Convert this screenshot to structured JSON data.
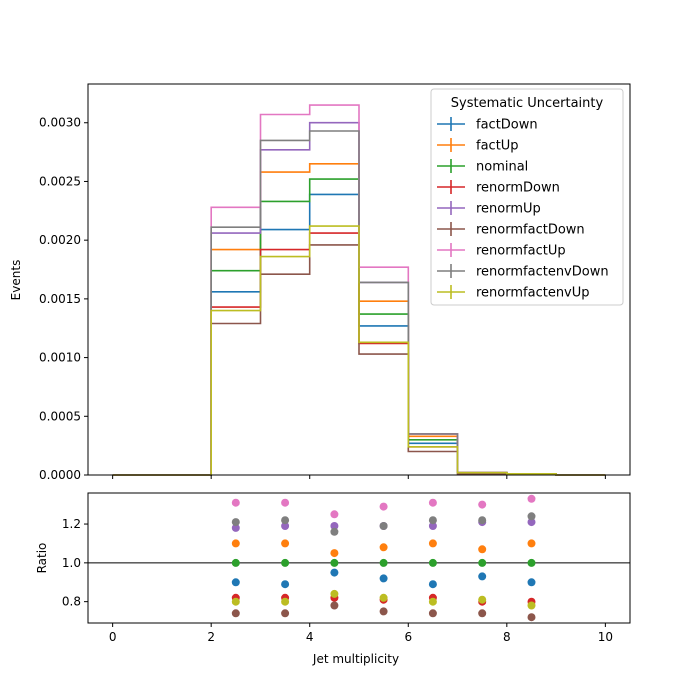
{
  "chart_data": [
    {
      "type": "line",
      "drawstyle": "steps",
      "ylabel": "Events",
      "ylim": [
        0,
        0.00333
      ],
      "xlim": [
        -0.5,
        10.5
      ],
      "yticks": [
        0.0,
        0.0005,
        0.001,
        0.0015,
        0.002,
        0.0025,
        0.003
      ],
      "ytick_labels": [
        "0.0000",
        "0.0005",
        "0.0010",
        "0.0015",
        "0.0020",
        "0.0025",
        "0.0030"
      ],
      "bin_edges": [
        0,
        1,
        2,
        3,
        4,
        5,
        6,
        7,
        8,
        9,
        10
      ],
      "legend": {
        "title": "Systematic Uncertainty",
        "placement": "top-right"
      },
      "series": [
        {
          "name": "factDown",
          "color": "#1f77b4",
          "values": [
            0,
            0,
            0.00156,
            0.00209,
            0.00239,
            0.00127,
            0.00027,
            2e-05,
            1e-05,
            0
          ]
        },
        {
          "name": "factUp",
          "color": "#ff7f0e",
          "values": [
            0,
            0,
            0.00192,
            0.00258,
            0.00265,
            0.00148,
            0.00033,
            2e-05,
            1e-05,
            0
          ]
        },
        {
          "name": "nominal",
          "color": "#2ca02c",
          "values": [
            0,
            0,
            0.00174,
            0.00233,
            0.00252,
            0.00137,
            0.0003,
            2e-05,
            1e-05,
            0
          ]
        },
        {
          "name": "renormDown",
          "color": "#d62728",
          "values": [
            0,
            0,
            0.00143,
            0.00192,
            0.00206,
            0.00112,
            0.00024,
            2e-05,
            1e-05,
            0
          ]
        },
        {
          "name": "renormUp",
          "color": "#9467bd",
          "values": [
            0,
            0,
            0.00206,
            0.00277,
            0.003,
            0.00164,
            0.00035,
            2e-05,
            1e-05,
            0
          ]
        },
        {
          "name": "renormfactDown",
          "color": "#8c564b",
          "values": [
            0,
            0,
            0.00129,
            0.00171,
            0.00196,
            0.00103,
            0.0002,
            1e-05,
            1e-05,
            0
          ]
        },
        {
          "name": "renormfactUp",
          "color": "#e377c2",
          "values": [
            0,
            0,
            0.00228,
            0.00307,
            0.00315,
            0.00177,
            0.00035,
            2e-05,
            1e-05,
            0
          ]
        },
        {
          "name": "renormfactenvDown",
          "color": "#7f7f7f",
          "values": [
            0,
            0,
            0.00211,
            0.00285,
            0.00293,
            0.00164,
            0.00035,
            2e-05,
            1e-05,
            0
          ]
        },
        {
          "name": "renormfactenvUp",
          "color": "#bcbd22",
          "values": [
            0,
            0,
            0.0014,
            0.00186,
            0.00212,
            0.00113,
            0.00024,
            2e-05,
            1e-05,
            0
          ]
        }
      ]
    },
    {
      "type": "scatter",
      "xlabel": "Jet multiplicity",
      "ylabel": "Ratio",
      "xlim": [
        -0.5,
        10.5
      ],
      "ylim": [
        0.69,
        1.36
      ],
      "xticks": [
        0,
        2,
        4,
        6,
        8,
        10
      ],
      "yticks": [
        0.8,
        1.0,
        1.2
      ],
      "ytick_labels": [
        "0.8",
        "1.0",
        "1.2"
      ],
      "reference_line": 1.0,
      "x": [
        2.5,
        3.5,
        4.5,
        5.5,
        6.5,
        7.5,
        8.5
      ],
      "series": [
        {
          "name": "factDown",
          "color": "#1f77b4",
          "values": [
            0.9,
            0.89,
            0.95,
            0.92,
            0.89,
            0.93,
            0.9
          ]
        },
        {
          "name": "factUp",
          "color": "#ff7f0e",
          "values": [
            1.1,
            1.1,
            1.05,
            1.08,
            1.1,
            1.07,
            1.1
          ]
        },
        {
          "name": "nominal",
          "color": "#2ca02c",
          "values": [
            1.0,
            1.0,
            1.0,
            1.0,
            1.0,
            1.0,
            1.0
          ]
        },
        {
          "name": "renormDown",
          "color": "#d62728",
          "values": [
            0.82,
            0.82,
            0.82,
            0.81,
            0.82,
            0.8,
            0.8
          ]
        },
        {
          "name": "renormUp",
          "color": "#9467bd",
          "values": [
            1.18,
            1.19,
            1.19,
            1.19,
            1.19,
            1.21,
            1.21
          ]
        },
        {
          "name": "renormfactDown",
          "color": "#8c564b",
          "values": [
            0.74,
            0.74,
            0.78,
            0.75,
            0.74,
            0.74,
            0.72
          ]
        },
        {
          "name": "renormfactUp",
          "color": "#e377c2",
          "values": [
            1.31,
            1.31,
            1.25,
            1.29,
            1.31,
            1.3,
            1.33
          ]
        },
        {
          "name": "renormfactenvDown",
          "color": "#7f7f7f",
          "values": [
            1.21,
            1.22,
            1.16,
            1.19,
            1.22,
            1.22,
            1.24
          ]
        },
        {
          "name": "renormfactenvUp",
          "color": "#bcbd22",
          "values": [
            0.8,
            0.8,
            0.84,
            0.82,
            0.8,
            0.81,
            0.78
          ]
        }
      ]
    }
  ]
}
